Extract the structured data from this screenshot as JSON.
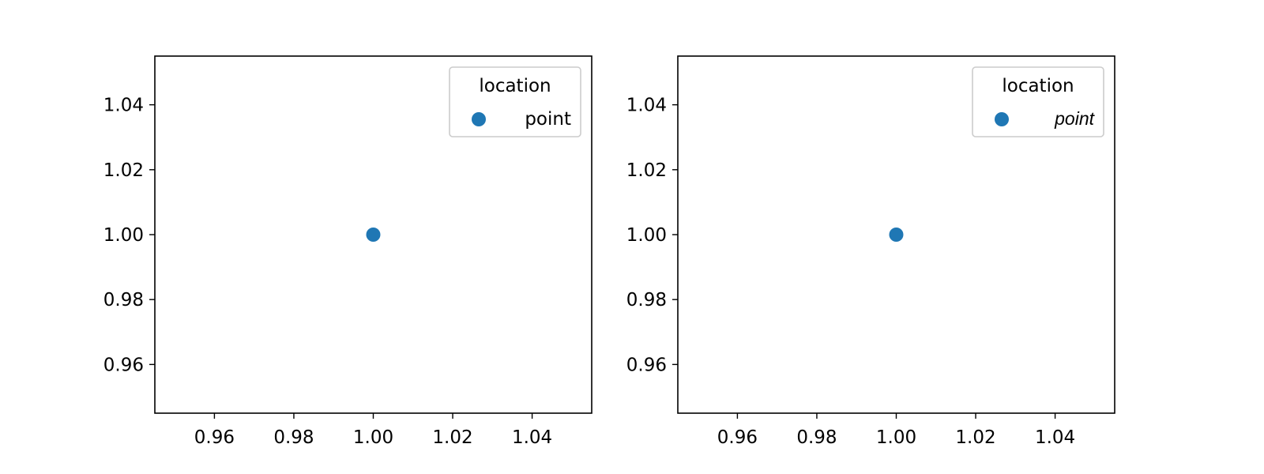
{
  "chart_data": [
    {
      "type": "scatter",
      "series": [
        {
          "name": "point",
          "x": [
            1.0
          ],
          "y": [
            1.0
          ],
          "color": "#1f77b4"
        }
      ],
      "xlim": [
        0.945,
        1.055
      ],
      "ylim": [
        0.945,
        1.055
      ],
      "xticks": [
        "0.96",
        "0.98",
        "1.00",
        "1.02",
        "1.04"
      ],
      "yticks": [
        "0.96",
        "0.98",
        "1.00",
        "1.02",
        "1.04"
      ],
      "xlabel": "",
      "ylabel": "",
      "grid": false,
      "legend": {
        "title": "location",
        "placement": "top-right",
        "label_style": "normal"
      }
    },
    {
      "type": "scatter",
      "series": [
        {
          "name": "point",
          "x": [
            1.0
          ],
          "y": [
            1.0
          ],
          "color": "#1f77b4"
        }
      ],
      "xlim": [
        0.945,
        1.055
      ],
      "ylim": [
        0.945,
        1.055
      ],
      "xticks": [
        "0.96",
        "0.98",
        "1.00",
        "1.02",
        "1.04"
      ],
      "yticks": [
        "0.96",
        "0.98",
        "1.00",
        "1.02",
        "1.04"
      ],
      "xlabel": "",
      "ylabel": "",
      "grid": false,
      "legend": {
        "title": "location",
        "placement": "top-right",
        "label_style": "italic"
      }
    }
  ]
}
